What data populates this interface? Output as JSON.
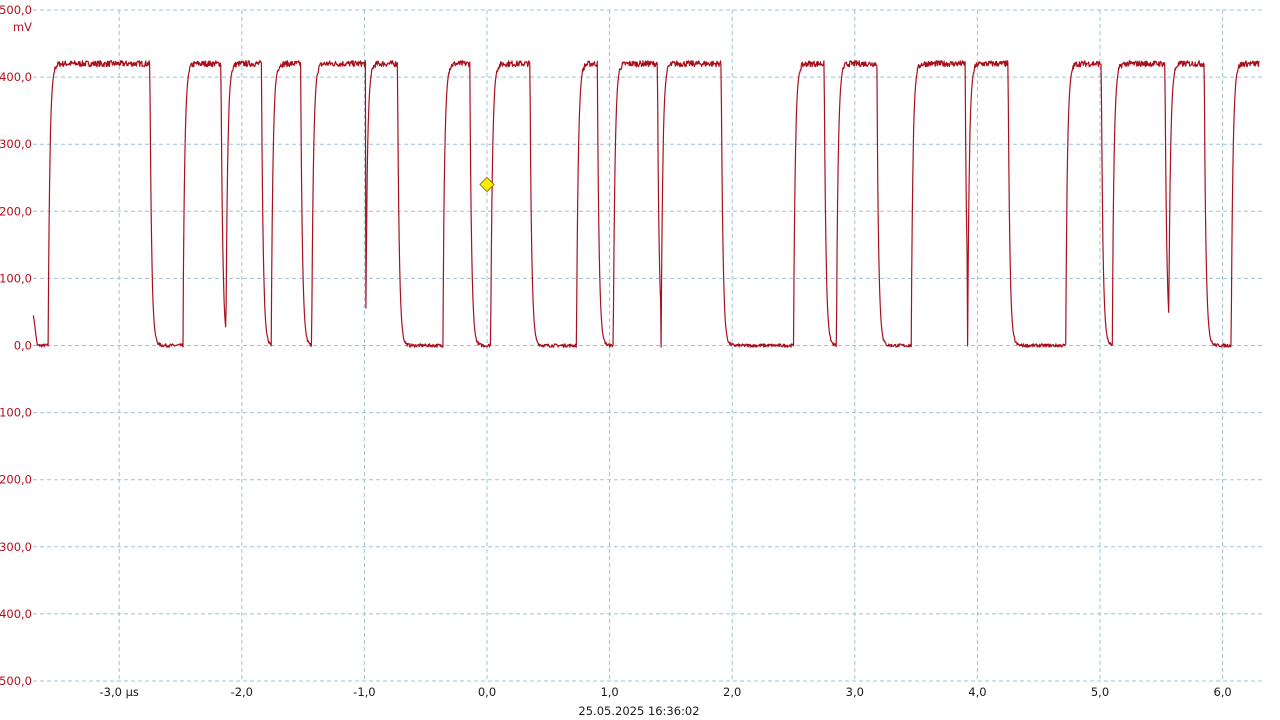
{
  "chart_data": {
    "type": "line",
    "title": "",
    "y_unit": "mV",
    "ylim": [
      -500,
      500
    ],
    "yticks": [
      500,
      400,
      300,
      200,
      100,
      0,
      -100,
      -200,
      -300,
      -400,
      -500
    ],
    "ytick_labels": [
      "500,0",
      "400,0",
      "300,0",
      "200,0",
      "100,0",
      "0,0",
      "-100,0",
      "-200,0",
      "-300,0",
      "-400,0",
      "-500,0"
    ],
    "xlim": [
      -3.7,
      6.3
    ],
    "x_unit": "µs",
    "xticks": [
      -3,
      -2,
      -1,
      0,
      1,
      2,
      3,
      4,
      5,
      6
    ],
    "xtick_labels": [
      "-3,0 µs",
      "-2,0",
      "-1,0",
      "0,0",
      "1,0",
      "2,0",
      "3,0",
      "4,0",
      "5,0",
      "6,0"
    ],
    "grid": true,
    "timestamp": "25.05.2025 16:36:02",
    "trace_color": "#a8101e",
    "series": [
      {
        "high_mV": 420,
        "low_mV": 0,
        "pulses_us": [
          [
            -3.58,
            -3.14
          ],
          [
            -3.22,
            -2.75
          ],
          [
            -2.48,
            -2.17
          ],
          [
            -2.13,
            -1.84
          ],
          [
            -1.76,
            -1.52
          ],
          [
            -1.43,
            -0.99
          ],
          [
            -0.99,
            -0.73
          ],
          [
            -0.36,
            -0.14
          ],
          [
            0.03,
            0.35
          ],
          [
            0.73,
            0.9
          ],
          [
            1.03,
            1.39
          ],
          [
            1.42,
            1.91
          ],
          [
            2.5,
            2.75
          ],
          [
            2.85,
            3.18
          ],
          [
            3.46,
            3.9
          ],
          [
            3.92,
            4.25
          ],
          [
            4.72,
            5.01
          ],
          [
            5.1,
            5.53
          ],
          [
            5.56,
            5.85
          ],
          [
            6.07,
            6.32
          ]
        ]
      }
    ],
    "trigger_marker": {
      "x": 0.0,
      "y": 240,
      "color": "#ffeb00"
    }
  }
}
